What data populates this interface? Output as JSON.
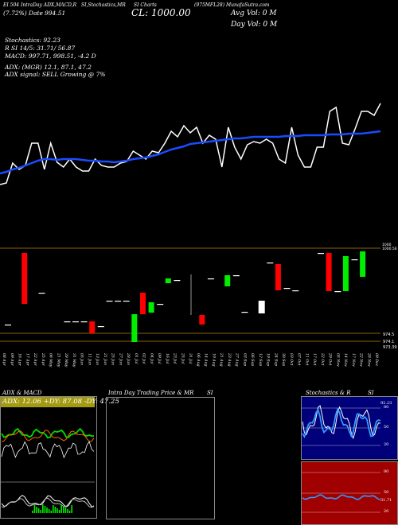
{
  "header": {
    "title_prefix": "(7.72%) Date",
    "line1_left": "EI 504 IntraDay ADX,MACD,R",
    "line1_mid": "SI,Stochastics,MR",
    "line1_mid2": "SI Charts",
    "line1_right": "(975MFL28) MunafaSutra.com",
    "date_lbl": "Date:",
    "ohlc": "994.51",
    "close_label": "CL: 1000.00",
    "avg_vol": "Avg Vol: 0   M",
    "day_vol": "Day Vol: 0   M"
  },
  "indicators": {
    "stochastics": "Stochastics: 92.23",
    "rsi": "R                    SI 14/5: 31.71/ 56.87",
    "macd": "MACD: 997.71,  998.51,  -4.2  D",
    "adx": "ADX:                         (MGR) 12.1,  87.1,  47.2",
    "adx_signal": "ADX  signal: SELL Growing @ 7%"
  },
  "price_axis": {
    "top_label": "1000",
    "top_label2": "1000.56",
    "low_label": "974.5",
    "low_label2": "974.1",
    "low_label3": "973.39"
  },
  "x_labels": [
    "08 Apr",
    "09 Apr",
    "16 Apr",
    "17 Apr",
    "22 Apr",
    "25 Apr",
    "06 May",
    "21 May",
    "28 May",
    "31 May",
    "05 Jun",
    "11 Jun",
    "13 Jun",
    "21 Jun",
    "25 Jun",
    "27 Jun",
    "28 Jun",
    "01 Jul",
    "02 Jul",
    "04 Jul",
    "09 Jul",
    "16 Jul",
    "23 Jul",
    "25 Jul",
    "31 Jul",
    "06 Aug",
    "14 Aug",
    "19 Aug",
    "21 Aug",
    "23 Aug",
    "27 Aug",
    "03 Sep",
    "06 Sep",
    "12 Sep",
    "19 Sep",
    "24 Sep",
    "30 Sep",
    "03 Oct",
    "07 Oct",
    "11 Oct",
    "17 Oct",
    "22 Oct",
    "29 Oct",
    "05 Nov",
    "14 Nov",
    "17 Nov",
    "22 Nov",
    "28 Nov",
    "09 Dec"
  ],
  "panels": {
    "adx_title": "ADX  & MACD",
    "adx_vals": "ADX: 12.06  +DY: 87.08  -DY: 47.25",
    "intraday_title": "Intra  Day Trading Price  & MR",
    "intraday_si": "SI",
    "stoch_title": "Stochastics & R",
    "stoch_si": "SI",
    "stoch_value": "92.23",
    "rsi_value": "31.71",
    "stoch_levels": [
      "80",
      "50",
      "20"
    ],
    "rsi_levels": [
      "80",
      "50",
      "20"
    ]
  },
  "chart_data": {
    "type": "line",
    "series": [
      {
        "name": "price",
        "color": "#ffffff",
        "values": [
          232,
          230,
          205,
          213,
          208,
          180,
          180,
          213,
          180,
          204,
          210,
          200,
          210,
          215,
          215,
          200,
          208,
          210,
          210,
          205,
          203,
          190,
          195,
          200,
          190,
          192,
          180,
          165,
          172,
          158,
          167,
          160,
          180,
          170,
          175,
          210,
          160,
          185,
          200,
          182,
          178,
          180,
          175,
          180,
          200,
          205,
          160,
          195,
          210,
          210,
          185,
          185,
          140,
          135,
          180,
          182,
          162,
          140,
          140,
          145,
          130
        ]
      },
      {
        "name": "moving_average",
        "color": "#1a4cff",
        "values": [
          218,
          216,
          213,
          211,
          208,
          205,
          202,
          200,
          200,
          201,
          200,
          200,
          200,
          201,
          202,
          202,
          203,
          203,
          204,
          203,
          202,
          200,
          199,
          198,
          196,
          194,
          191,
          188,
          186,
          184,
          181,
          180,
          179,
          178,
          177,
          176,
          175,
          174,
          174,
          173,
          172,
          172,
          172,
          172,
          172,
          171,
          171,
          171,
          170,
          170,
          170,
          170,
          169,
          169,
          169,
          168,
          168,
          168,
          167,
          166,
          165
        ]
      }
    ],
    "candles": [
      {
        "i": 0,
        "top": 408,
        "bot": 409,
        "color": "#ffffff"
      },
      {
        "i": 2,
        "top": 318,
        "bot": 382,
        "color": "#ff0000"
      },
      {
        "i": 4,
        "top": 368,
        "bot": 369,
        "color": "#ffffff"
      },
      {
        "i": 7,
        "top": 404,
        "bot": 405,
        "color": "#ffffff"
      },
      {
        "i": 8,
        "top": 404,
        "bot": 405,
        "color": "#ffffff"
      },
      {
        "i": 9,
        "top": 404,
        "bot": 405,
        "color": "#ffffff"
      },
      {
        "i": 10,
        "top": 404,
        "bot": 419,
        "color": "#ff0000"
      },
      {
        "i": 11,
        "top": 410,
        "bot": 411,
        "color": "#ffffff"
      },
      {
        "i": 12,
        "top": 378,
        "bot": 379,
        "color": "#ffffff"
      },
      {
        "i": 13,
        "top": 378,
        "bot": 379,
        "color": "#ffffff"
      },
      {
        "i": 14,
        "top": 378,
        "bot": 379,
        "color": "#ffffff"
      },
      {
        "i": 15,
        "top": 395,
        "bot": 430,
        "color": "#00ee00"
      },
      {
        "i": 16,
        "top": 368,
        "bot": 395,
        "color": "#ff0000"
      },
      {
        "i": 17,
        "top": 380,
        "bot": 393,
        "color": "#00ee00"
      },
      {
        "i": 18,
        "top": 382,
        "bot": 383,
        "color": "#ffffff"
      },
      {
        "i": 19,
        "top": 350,
        "bot": 356,
        "color": "#00ee00"
      },
      {
        "i": 20,
        "top": 352,
        "bot": 353,
        "color": "#ffffff"
      },
      {
        "i": 23,
        "top": 396,
        "bot": 408,
        "color": "#ff0000"
      },
      {
        "i": 24,
        "top": 350,
        "bot": 351,
        "color": "#ffffff"
      },
      {
        "i": 26,
        "top": 346,
        "bot": 360,
        "color": "#00ee00"
      },
      {
        "i": 27,
        "top": 346,
        "bot": 347,
        "color": "#ffffff"
      },
      {
        "i": 28,
        "top": 392,
        "bot": 393,
        "color": "#ffffff"
      },
      {
        "i": 30,
        "top": 378,
        "bot": 394,
        "color": "#ffffff"
      },
      {
        "i": 31,
        "top": 330,
        "bot": 331,
        "color": "#ffffff"
      },
      {
        "i": 32,
        "top": 332,
        "bot": 365,
        "color": "#ff0000"
      },
      {
        "i": 33,
        "top": 362,
        "bot": 363,
        "color": "#ffffff"
      },
      {
        "i": 34,
        "top": 365,
        "bot": 366,
        "color": "#ffffff"
      },
      {
        "i": 37,
        "top": 318,
        "bot": 319,
        "color": "#ffffff"
      },
      {
        "i": 38,
        "top": 318,
        "bot": 366,
        "color": "#ff0000"
      },
      {
        "i": 39,
        "top": 366,
        "bot": 367,
        "color": "#ffffff"
      },
      {
        "i": 40,
        "top": 322,
        "bot": 366,
        "color": "#00ee00"
      },
      {
        "i": 41,
        "top": 326,
        "bot": 327,
        "color": "#ffffff"
      },
      {
        "i": 42,
        "top": 316,
        "bot": 348,
        "color": "#00ee00"
      }
    ]
  }
}
